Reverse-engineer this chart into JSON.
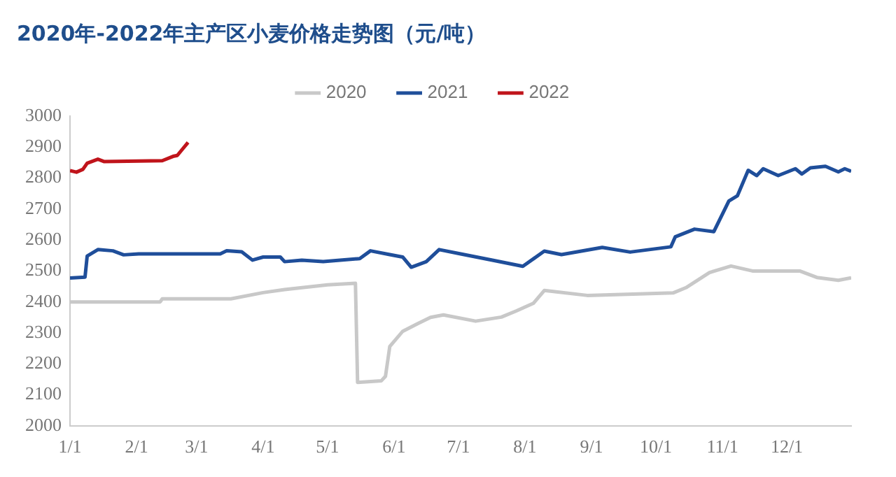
{
  "chart_data": {
    "type": "line",
    "title": "2020年-2022年主产区小麦价格走势图（元/吨）",
    "legend": "top",
    "grid": false,
    "marker": "none",
    "line_style": "solid",
    "xlim": [
      "--01-01",
      "--12-31"
    ],
    "xticks": [
      {
        "value": "--01-01",
        "label": "1/1"
      },
      {
        "value": "--02-01",
        "label": "2/1"
      },
      {
        "value": "--03-01",
        "label": "3/1"
      },
      {
        "value": "--04-01",
        "label": "4/1"
      },
      {
        "value": "--05-01",
        "label": "5/1"
      },
      {
        "value": "--06-01",
        "label": "6/1"
      },
      {
        "value": "--07-01",
        "label": "7/1"
      },
      {
        "value": "--08-01",
        "label": "8/1"
      },
      {
        "value": "--09-01",
        "label": "9/1"
      },
      {
        "value": "--10-01",
        "label": "10/1"
      },
      {
        "value": "--11-01",
        "label": "11/1"
      },
      {
        "value": "--12-01",
        "label": "12/1"
      }
    ],
    "ylim": [
      2000,
      3000
    ],
    "yticks": [
      2000,
      2100,
      2200,
      2300,
      2400,
      2500,
      2600,
      2700,
      2800,
      2900,
      3000
    ],
    "series": [
      {
        "name": "2020",
        "color": "#c8c8c8",
        "x": [
          "--01-01",
          "--02-12",
          "--02-13",
          "--03-17",
          "--04-01",
          "--04-11",
          "--05-01",
          "--05-14",
          "--05-15",
          "--05-26",
          "--05-28",
          "--05-30",
          "--06-05",
          "--06-12",
          "--06-18",
          "--06-24",
          "--07-09",
          "--07-21",
          "--07-28",
          "--08-05",
          "--08-10",
          "--08-30",
          "--10-09",
          "--10-15",
          "--10-26",
          "--11-05",
          "--11-15",
          "--12-07",
          "--12-15",
          "--12-25",
          "--12-31"
        ],
        "values": [
          2400,
          2400,
          2410,
          2410,
          2430,
          2440,
          2455,
          2460,
          2140,
          2145,
          2160,
          2256,
          2305,
          2330,
          2350,
          2358,
          2338,
          2351,
          2371,
          2396,
          2437,
          2421,
          2429,
          2446,
          2495,
          2516,
          2500,
          2500,
          2479,
          2470,
          2478
        ]
      },
      {
        "name": "2021",
        "color": "#1f4e9a",
        "x": [
          "--01-01",
          "--01-08",
          "--01-09",
          "--01-14",
          "--01-21",
          "--01-26",
          "--02-02",
          "--03-12",
          "--03-15",
          "--03-22",
          "--03-27",
          "--04-01",
          "--04-09",
          "--04-11",
          "--04-19",
          "--04-29",
          "--05-16",
          "--05-21",
          "--05-30",
          "--06-05",
          "--06-09",
          "--06-16",
          "--06-22",
          "--07-02",
          "--07-16",
          "--07-31",
          "--08-10",
          "--08-18",
          "--09-06",
          "--09-19",
          "--10-08",
          "--10-10",
          "--10-19",
          "--10-28",
          "--11-04",
          "--11-08",
          "--11-13",
          "--11-17",
          "--11-20",
          "--11-27",
          "--12-05",
          "--12-08",
          "--12-12",
          "--12-19",
          "--12-25",
          "--12-28",
          "--12-31"
        ],
        "values": [
          2477,
          2480,
          2548,
          2569,
          2565,
          2552,
          2555,
          2555,
          2565,
          2562,
          2535,
          2545,
          2545,
          2530,
          2535,
          2530,
          2540,
          2565,
          2553,
          2545,
          2512,
          2530,
          2569,
          2555,
          2536,
          2515,
          2564,
          2553,
          2576,
          2561,
          2578,
          2610,
          2635,
          2627,
          2726,
          2743,
          2825,
          2808,
          2830,
          2808,
          2830,
          2813,
          2833,
          2838,
          2820,
          2830,
          2822
        ]
      },
      {
        "name": "2022",
        "color": "#c0141b",
        "x": [
          "--01-01",
          "--01-04",
          "--01-07",
          "--01-09",
          "--01-14",
          "--01-17",
          "--02-13",
          "--02-18",
          "--02-20",
          "--02-22",
          "--02-25"
        ],
        "values": [
          2824,
          2819,
          2828,
          2848,
          2861,
          2853,
          2856,
          2870,
          2873,
          2890,
          2915
        ]
      }
    ]
  }
}
